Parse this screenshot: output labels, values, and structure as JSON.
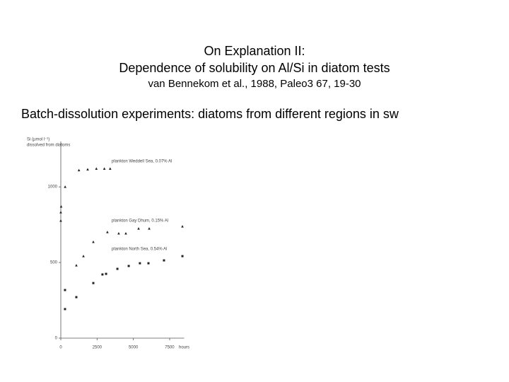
{
  "slide": {
    "title_lines": [
      "On Explanation II:",
      "Dependence of solubility on Al/Si in diatom tests"
    ],
    "citation": "van Bennekom et al., 1988, Paleo3 67, 19-30",
    "subtitle": "Batch-dissolution experiments: diatoms from different regions in sw"
  },
  "chart_data": {
    "type": "scatter",
    "ylabel_lines": [
      "Si (µmol l⁻¹)",
      "dissolved from diatoms"
    ],
    "xlabel": "hours",
    "xlim": [
      0,
      8500
    ],
    "ylim": [
      0,
      1300
    ],
    "xticks": [
      0,
      2500,
      5000,
      7500
    ],
    "yticks": [
      0,
      500,
      1000
    ],
    "series": [
      {
        "name": "plankton Weddell Sea, 0.07% Al",
        "color": "#222222",
        "marker": "triangle",
        "x": [
          25,
          300,
          1250,
          1850,
          2450,
          3000,
          3400
        ],
        "values": [
          870,
          1000,
          1110,
          1115,
          1120,
          1120,
          1120
        ]
      },
      {
        "name": "plankton Gay Dhum, 0.15% Al",
        "color": "#222222",
        "marker": "triangle",
        "x": [
          0,
          0,
          1070,
          1560,
          2240,
          3210,
          3990,
          4480,
          5360,
          6090,
          8380
        ],
        "values": [
          832,
          776,
          481,
          542,
          636,
          701,
          692,
          692,
          724,
          724,
          738
        ]
      },
      {
        "name": "plankton North Sea, 0.54% Al",
        "color": "#222222",
        "marker": "square",
        "x": [
          290,
          290,
          1070,
          2240,
          2870,
          3120,
          3900,
          4680,
          5450,
          6040,
          7110,
          8380
        ],
        "values": [
          192,
          318,
          271,
          364,
          421,
          425,
          458,
          477,
          495,
          495,
          514,
          542
        ]
      }
    ]
  }
}
